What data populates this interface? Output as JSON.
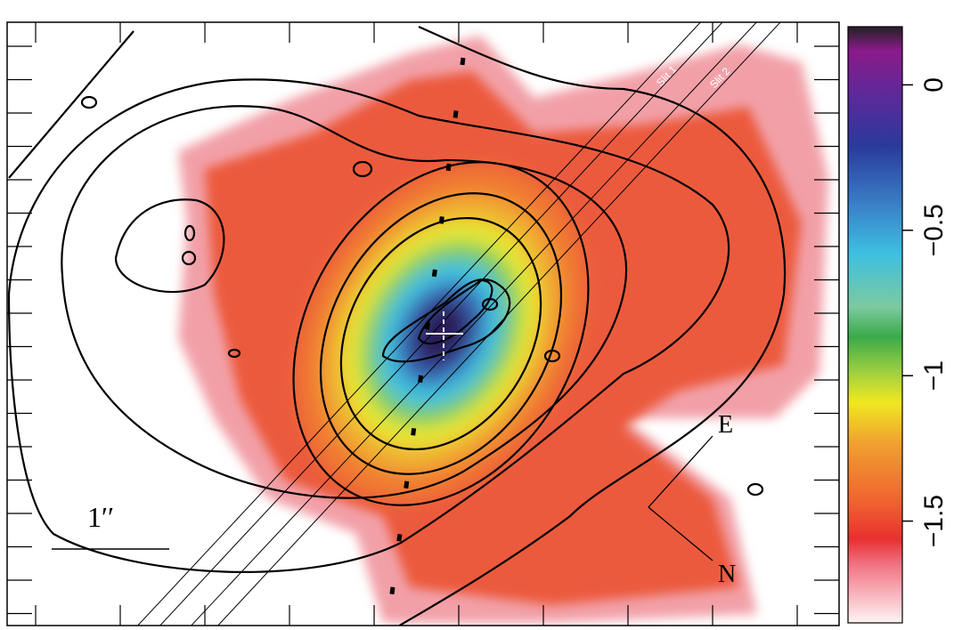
{
  "chart_data": {
    "type": "image",
    "ylim": [
      -1.85,
      0.2
    ],
    "yticks": [
      {
        "value": -1.5,
        "label": "−1.5"
      },
      {
        "value": -1,
        "label": "−1"
      },
      {
        "value": -0.5,
        "label": "−0.5"
      },
      0
    ],
    "annotations": [
      "Slit 1",
      "Slit 2",
      "E",
      "N",
      "1′′"
    ]
  }
}
